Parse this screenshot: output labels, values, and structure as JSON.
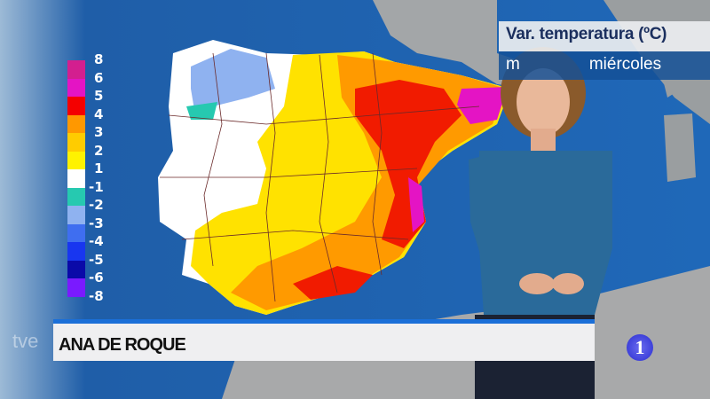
{
  "header": {
    "title": "Var. temperatura (ºC)",
    "subtitle_visible": "m",
    "subtitle_day": "miércoles"
  },
  "legend": {
    "labels": [
      "8",
      "6",
      "5",
      "4",
      "3",
      "2",
      "1",
      "-1",
      "-2",
      "-3",
      "-4",
      "-5",
      "-6",
      "-8"
    ],
    "colors": [
      "#d31f8f",
      "#e414c4",
      "#f40000",
      "#ff9800",
      "#ffcc00",
      "#fff200",
      "#ffffff",
      "#26c9b0",
      "#8fb2f0",
      "#3f6ef0",
      "#1836f0",
      "#0a0aa8",
      "#7a1aff"
    ]
  },
  "lower_third": {
    "name": "ANA DE ROQUE"
  },
  "logos": {
    "broadcaster": "tve",
    "channel": "1"
  },
  "colors": {
    "sea": "#1a5fa8",
    "land": "#9a9a9a",
    "accent": "#1b6fd8"
  }
}
